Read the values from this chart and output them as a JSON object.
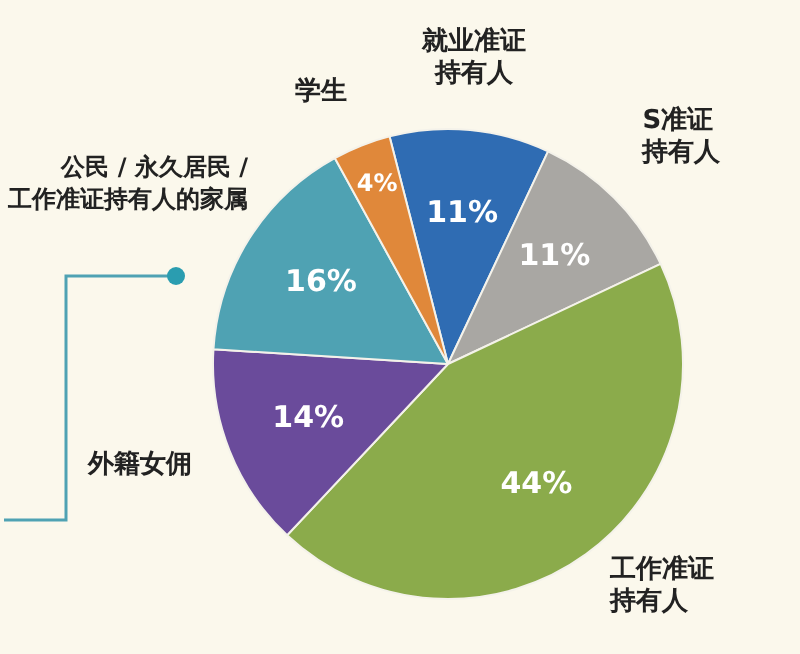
{
  "chart_data": {
    "type": "pie",
    "categories": [
      "就业准证持有人",
      "S准证持有人",
      "工作准证持有人",
      "外籍女佣",
      "公民 / 永久居民 / 工作准证持有人的家属",
      "学生"
    ],
    "values": [
      11,
      11,
      44,
      14,
      16,
      4
    ],
    "value_labels": [
      "11%",
      "11%",
      "44%",
      "14%",
      "16%",
      "4%"
    ],
    "colors": [
      "#2f6cb3",
      "#a9a7a3",
      "#8bab4b",
      "#6a4b9b",
      "#4fa2b3",
      "#e0883a"
    ],
    "legend": false
  }
}
